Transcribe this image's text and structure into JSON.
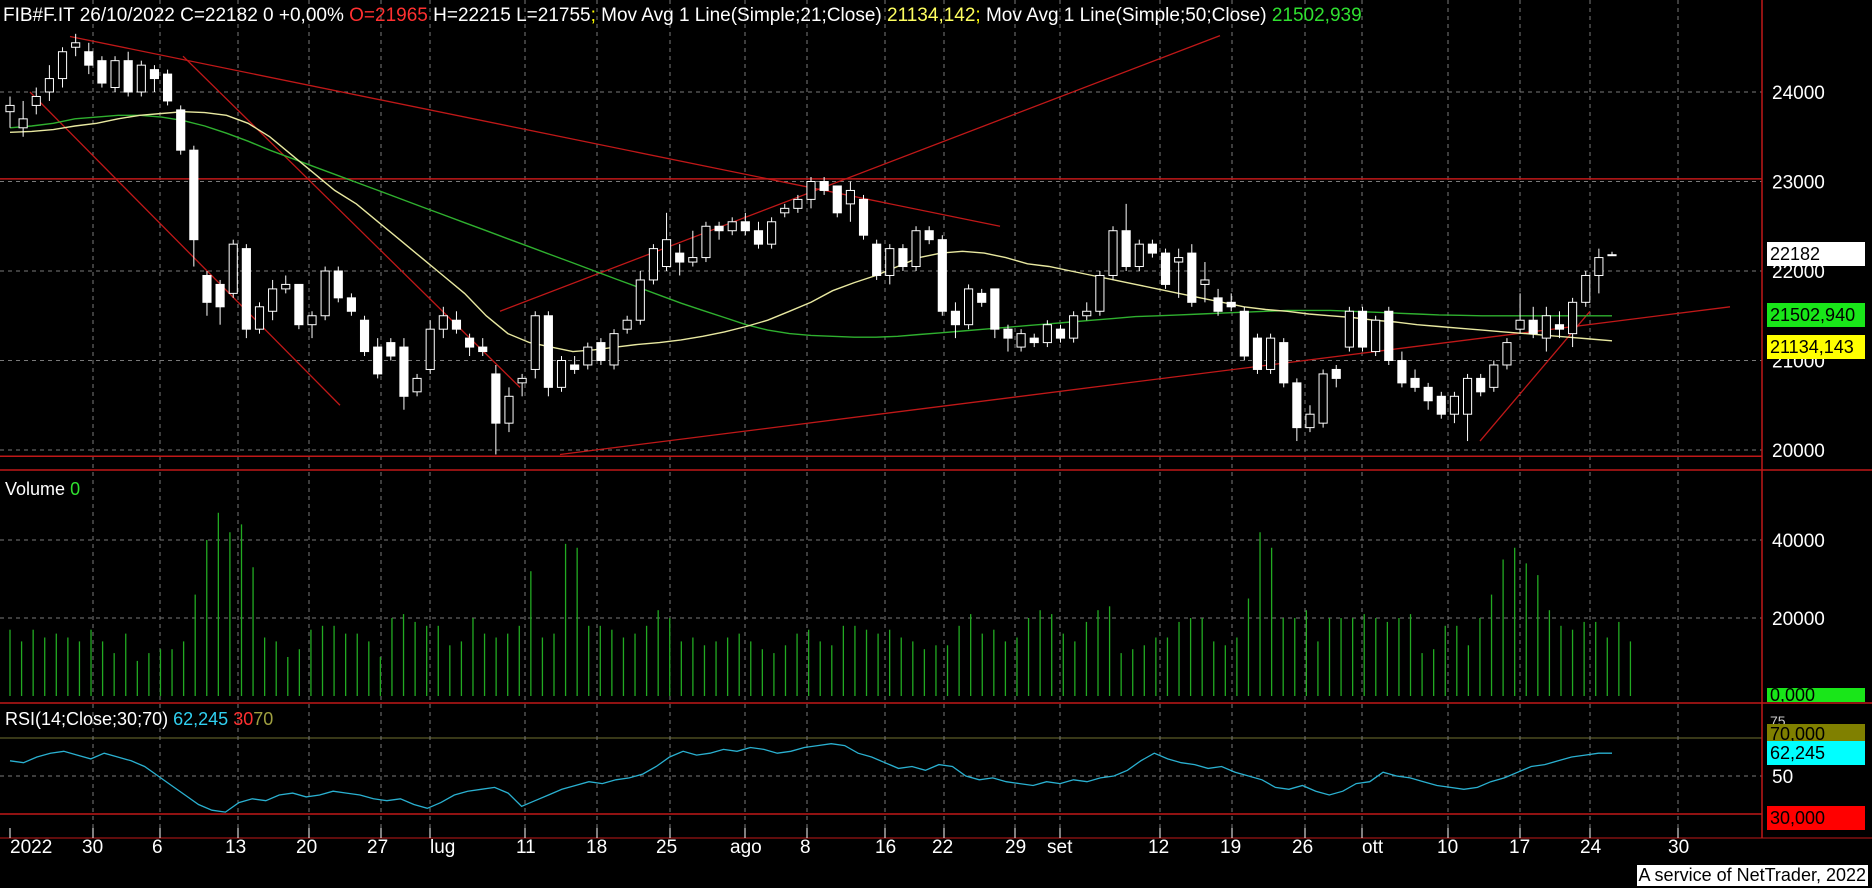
{
  "header": {
    "symbol": "FIB#F.IT",
    "date": "26/10/2022",
    "close": "C=22182",
    "change": "0 +0,00%",
    "open": "O=21965",
    "high": "H=22215",
    "low": "L=21755",
    "sep": ";",
    "ma21_label": "Mov Avg 1 Line(Simple;21;Close)",
    "ma21_value": "21134,142",
    "ma50_label": "Mov Avg 1 Line(Simple;50;Close)",
    "ma50_value": "21502,939"
  },
  "volume_label": {
    "name": "Volume",
    "value": "0"
  },
  "rsi_label": {
    "name": "RSI(14;Close;30;70)",
    "value": "62,245",
    "low": "30",
    "high": "70"
  },
  "badges": {
    "last": "22182",
    "ma50": "21502,940",
    "ma21": "21134,143",
    "vol": "0,000",
    "rsi70": "70,000",
    "rsi75": "75",
    "rsi": "62,245",
    "rsi30": "30,000"
  },
  "footer": "A service of NetTrader, 2022",
  "colors": {
    "background": "#000000",
    "grid": "#7a7a7a",
    "candle_up": "#000000",
    "candle_down": "#ffffff",
    "ma21": "#e8e8a0",
    "ma50": "#2fb02f",
    "volume": "#22aa22",
    "rsi": "#2ab0d0",
    "trendline": "#c01818",
    "last_badge": "#ffffff",
    "ma50_badge": "#19e619",
    "ma21_badge": "#ffff00",
    "rsi_badge": "#00ffff",
    "rsi30_badge": "#ff0000",
    "rsi70_badge": "#808000"
  },
  "chart_data": {
    "type": "candlestick",
    "x_tick_labels": [
      "2022",
      "30",
      "6",
      "13",
      "20",
      "27",
      "lug",
      "11",
      "18",
      "25",
      "ago",
      "8",
      "16",
      "22",
      "29",
      "set",
      "12",
      "19",
      "26",
      "ott",
      "10",
      "17",
      "24",
      "30"
    ],
    "price_axis": {
      "ticks": [
        20000,
        21000,
        22000,
        23000,
        24000
      ],
      "range": [
        19850,
        24900
      ]
    },
    "volume_axis": {
      "ticks": [
        20000,
        40000
      ],
      "range": [
        0,
        47000
      ]
    },
    "rsi_axis": {
      "ticks": [
        50
      ],
      "range": [
        20,
        80
      ]
    },
    "horizontal_levels": [
      23030,
      19930
    ],
    "candles": [
      {
        "o": 23780,
        "h": 23950,
        "l": 23600,
        "c": 23850
      },
      {
        "o": 23600,
        "h": 23900,
        "l": 23500,
        "c": 23700
      },
      {
        "o": 23850,
        "h": 24050,
        "l": 23750,
        "c": 23950
      },
      {
        "o": 24000,
        "h": 24300,
        "l": 23900,
        "c": 24150
      },
      {
        "o": 24150,
        "h": 24500,
        "l": 24050,
        "c": 24450
      },
      {
        "o": 24500,
        "h": 24650,
        "l": 24400,
        "c": 24550
      },
      {
        "o": 24450,
        "h": 24550,
        "l": 24200,
        "c": 24300
      },
      {
        "o": 24350,
        "h": 24400,
        "l": 24050,
        "c": 24100
      },
      {
        "o": 24050,
        "h": 24400,
        "l": 24000,
        "c": 24350
      },
      {
        "o": 24350,
        "h": 24450,
        "l": 23950,
        "c": 24000
      },
      {
        "o": 24000,
        "h": 24350,
        "l": 23950,
        "c": 24300
      },
      {
        "o": 24250,
        "h": 24300,
        "l": 24000,
        "c": 24150
      },
      {
        "o": 24200,
        "h": 24250,
        "l": 23850,
        "c": 23900
      },
      {
        "o": 23800,
        "h": 23850,
        "l": 23300,
        "c": 23350
      },
      {
        "o": 23350,
        "h": 23400,
        "l": 22050,
        "c": 22350
      },
      {
        "o": 21950,
        "h": 22000,
        "l": 21500,
        "c": 21650
      },
      {
        "o": 21850,
        "h": 21900,
        "l": 21400,
        "c": 21600
      },
      {
        "o": 21750,
        "h": 22350,
        "l": 21700,
        "c": 22300
      },
      {
        "o": 22250,
        "h": 22300,
        "l": 21250,
        "c": 21350
      },
      {
        "o": 21350,
        "h": 21650,
        "l": 21300,
        "c": 21600
      },
      {
        "o": 21550,
        "h": 21900,
        "l": 21450,
        "c": 21800
      },
      {
        "o": 21800,
        "h": 21950,
        "l": 21750,
        "c": 21850
      },
      {
        "o": 21850,
        "h": 21850,
        "l": 21350,
        "c": 21400
      },
      {
        "o": 21400,
        "h": 21550,
        "l": 21250,
        "c": 21500
      },
      {
        "o": 21500,
        "h": 22050,
        "l": 21450,
        "c": 22000
      },
      {
        "o": 22000,
        "h": 22050,
        "l": 21650,
        "c": 21700
      },
      {
        "o": 21700,
        "h": 21750,
        "l": 21500,
        "c": 21550
      },
      {
        "o": 21450,
        "h": 21500,
        "l": 21050,
        "c": 21100
      },
      {
        "o": 21150,
        "h": 21250,
        "l": 20800,
        "c": 20850
      },
      {
        "o": 21200,
        "h": 21250,
        "l": 21000,
        "c": 21050
      },
      {
        "o": 21150,
        "h": 21250,
        "l": 20450,
        "c": 20600
      },
      {
        "o": 20650,
        "h": 20850,
        "l": 20600,
        "c": 20800
      },
      {
        "o": 20900,
        "h": 21450,
        "l": 20850,
        "c": 21350
      },
      {
        "o": 21350,
        "h": 21600,
        "l": 21250,
        "c": 21500
      },
      {
        "o": 21450,
        "h": 21550,
        "l": 21300,
        "c": 21350
      },
      {
        "o": 21250,
        "h": 21300,
        "l": 21050,
        "c": 21150
      },
      {
        "o": 21150,
        "h": 21250,
        "l": 21050,
        "c": 21100
      },
      {
        "o": 20850,
        "h": 20950,
        "l": 19950,
        "c": 20300
      },
      {
        "o": 20300,
        "h": 20700,
        "l": 20200,
        "c": 20600
      },
      {
        "o": 20750,
        "h": 20850,
        "l": 20600,
        "c": 20800
      },
      {
        "o": 20900,
        "h": 21550,
        "l": 20800,
        "c": 21500
      },
      {
        "o": 21500,
        "h": 21550,
        "l": 20600,
        "c": 20700
      },
      {
        "o": 20700,
        "h": 21050,
        "l": 20650,
        "c": 21000
      },
      {
        "o": 20950,
        "h": 21050,
        "l": 20850,
        "c": 20900
      },
      {
        "o": 20950,
        "h": 21200,
        "l": 20900,
        "c": 21150
      },
      {
        "o": 21200,
        "h": 21250,
        "l": 20950,
        "c": 21000
      },
      {
        "o": 20950,
        "h": 21350,
        "l": 20900,
        "c": 21300
      },
      {
        "o": 21350,
        "h": 21500,
        "l": 21300,
        "c": 21450
      },
      {
        "o": 21450,
        "h": 22000,
        "l": 21400,
        "c": 21900
      },
      {
        "o": 21900,
        "h": 22300,
        "l": 21850,
        "c": 22250
      },
      {
        "o": 22050,
        "h": 22650,
        "l": 22000,
        "c": 22350
      },
      {
        "o": 22200,
        "h": 22300,
        "l": 21950,
        "c": 22100
      },
      {
        "o": 22100,
        "h": 22450,
        "l": 22050,
        "c": 22150
      },
      {
        "o": 22150,
        "h": 22550,
        "l": 22100,
        "c": 22500
      },
      {
        "o": 22500,
        "h": 22550,
        "l": 22350,
        "c": 22450
      },
      {
        "o": 22450,
        "h": 22600,
        "l": 22400,
        "c": 22550
      },
      {
        "o": 22550,
        "h": 22650,
        "l": 22400,
        "c": 22450
      },
      {
        "o": 22450,
        "h": 22550,
        "l": 22250,
        "c": 22300
      },
      {
        "o": 22300,
        "h": 22600,
        "l": 22250,
        "c": 22550
      },
      {
        "o": 22650,
        "h": 22750,
        "l": 22600,
        "c": 22700
      },
      {
        "o": 22700,
        "h": 22850,
        "l": 22650,
        "c": 22800
      },
      {
        "o": 22800,
        "h": 23050,
        "l": 22700,
        "c": 23000
      },
      {
        "o": 23000,
        "h": 23050,
        "l": 22850,
        "c": 22900
      },
      {
        "o": 22950,
        "h": 22950,
        "l": 22600,
        "c": 22650
      },
      {
        "o": 22750,
        "h": 23000,
        "l": 22550,
        "c": 22900
      },
      {
        "o": 22800,
        "h": 22850,
        "l": 22350,
        "c": 22400
      },
      {
        "o": 22300,
        "h": 22350,
        "l": 21900,
        "c": 21950
      },
      {
        "o": 21950,
        "h": 22300,
        "l": 21850,
        "c": 22250
      },
      {
        "o": 22250,
        "h": 22300,
        "l": 22000,
        "c": 22050
      },
      {
        "o": 22050,
        "h": 22500,
        "l": 22000,
        "c": 22450
      },
      {
        "o": 22450,
        "h": 22500,
        "l": 22300,
        "c": 22350
      },
      {
        "o": 22350,
        "h": 22400,
        "l": 21500,
        "c": 21550
      },
      {
        "o": 21550,
        "h": 21650,
        "l": 21250,
        "c": 21400
      },
      {
        "o": 21400,
        "h": 21850,
        "l": 21350,
        "c": 21800
      },
      {
        "o": 21750,
        "h": 21800,
        "l": 21600,
        "c": 21650
      },
      {
        "o": 21800,
        "h": 21800,
        "l": 21250,
        "c": 21350
      },
      {
        "o": 21350,
        "h": 21400,
        "l": 21100,
        "c": 21250
      },
      {
        "o": 21150,
        "h": 21350,
        "l": 21100,
        "c": 21300
      },
      {
        "o": 21250,
        "h": 21300,
        "l": 21150,
        "c": 21200
      },
      {
        "o": 21200,
        "h": 21450,
        "l": 21150,
        "c": 21400
      },
      {
        "o": 21350,
        "h": 21400,
        "l": 21200,
        "c": 21250
      },
      {
        "o": 21250,
        "h": 21550,
        "l": 21200,
        "c": 21500
      },
      {
        "o": 21500,
        "h": 21650,
        "l": 21450,
        "c": 21550
      },
      {
        "o": 21550,
        "h": 22000,
        "l": 21500,
        "c": 21950
      },
      {
        "o": 21950,
        "h": 22500,
        "l": 21900,
        "c": 22450
      },
      {
        "o": 22450,
        "h": 22750,
        "l": 22000,
        "c": 22050
      },
      {
        "o": 22050,
        "h": 22350,
        "l": 22000,
        "c": 22300
      },
      {
        "o": 22300,
        "h": 22350,
        "l": 22150,
        "c": 22200
      },
      {
        "o": 22200,
        "h": 22250,
        "l": 21800,
        "c": 21850
      },
      {
        "o": 22100,
        "h": 22250,
        "l": 21700,
        "c": 22150
      },
      {
        "o": 22200,
        "h": 22300,
        "l": 21600,
        "c": 21650
      },
      {
        "o": 21850,
        "h": 22100,
        "l": 21650,
        "c": 21900
      },
      {
        "o": 21700,
        "h": 21800,
        "l": 21500,
        "c": 21550
      },
      {
        "o": 21650,
        "h": 21750,
        "l": 21550,
        "c": 21600
      },
      {
        "o": 21550,
        "h": 21600,
        "l": 21000,
        "c": 21050
      },
      {
        "o": 21250,
        "h": 21300,
        "l": 20850,
        "c": 20900
      },
      {
        "o": 20900,
        "h": 21300,
        "l": 20850,
        "c": 21250
      },
      {
        "o": 21200,
        "h": 21250,
        "l": 20700,
        "c": 20750
      },
      {
        "o": 20750,
        "h": 20800,
        "l": 20100,
        "c": 20250
      },
      {
        "o": 20250,
        "h": 20500,
        "l": 20200,
        "c": 20400
      },
      {
        "o": 20300,
        "h": 20900,
        "l": 20250,
        "c": 20850
      },
      {
        "o": 20900,
        "h": 20950,
        "l": 20700,
        "c": 20800
      },
      {
        "o": 21150,
        "h": 21600,
        "l": 21100,
        "c": 21550
      },
      {
        "o": 21550,
        "h": 21600,
        "l": 21100,
        "c": 21150
      },
      {
        "o": 21100,
        "h": 21500,
        "l": 21050,
        "c": 21450
      },
      {
        "o": 21550,
        "h": 21600,
        "l": 20950,
        "c": 21000
      },
      {
        "o": 21000,
        "h": 21100,
        "l": 20700,
        "c": 20750
      },
      {
        "o": 20800,
        "h": 20900,
        "l": 20650,
        "c": 20700
      },
      {
        "o": 20700,
        "h": 20750,
        "l": 20450,
        "c": 20550
      },
      {
        "o": 20600,
        "h": 20650,
        "l": 20350,
        "c": 20400
      },
      {
        "o": 20400,
        "h": 20650,
        "l": 20300,
        "c": 20600
      },
      {
        "o": 20400,
        "h": 20850,
        "l": 20100,
        "c": 20800
      },
      {
        "o": 20800,
        "h": 20850,
        "l": 20600,
        "c": 20650
      },
      {
        "o": 20700,
        "h": 21000,
        "l": 20650,
        "c": 20950
      },
      {
        "o": 20950,
        "h": 21250,
        "l": 20900,
        "c": 21200
      },
      {
        "o": 21350,
        "h": 21750,
        "l": 21300,
        "c": 21450
      },
      {
        "o": 21450,
        "h": 21600,
        "l": 21250,
        "c": 21300
      },
      {
        "o": 21250,
        "h": 21600,
        "l": 21100,
        "c": 21500
      },
      {
        "o": 21400,
        "h": 21550,
        "l": 21250,
        "c": 21350
      },
      {
        "o": 21300,
        "h": 21700,
        "l": 21150,
        "c": 21650
      },
      {
        "o": 21650,
        "h": 22000,
        "l": 21600,
        "c": 21950
      },
      {
        "o": 21950,
        "h": 22250,
        "l": 21750,
        "c": 22150
      },
      {
        "o": 22182,
        "h": 22215,
        "l": 22182,
        "c": 22182
      }
    ],
    "ma21": [
      23550,
      23560,
      23580,
      23620,
      23650,
      23700,
      23740,
      23760,
      23780,
      23770,
      23740,
      23650,
      23500,
      23300,
      23100,
      22900,
      22750,
      22550,
      22350,
      22150,
      21950,
      21750,
      21500,
      21300,
      21200,
      21150,
      21100,
      21120,
      21150,
      21180,
      21200,
      21230,
      21270,
      21320,
      21380,
      21450,
      21550,
      21650,
      21780,
      21870,
      21950,
      22050,
      22150,
      22200,
      22220,
      22200,
      22150,
      22080,
      22050,
      22000,
      21950,
      21900,
      21850,
      21800,
      21750,
      21700,
      21650,
      21600,
      21570,
      21550,
      21520,
      21500,
      21480,
      21450,
      21430,
      21400,
      21380,
      21360,
      21340,
      21320,
      21300,
      21280,
      21260,
      21240,
      21220
    ],
    "ma50": [
      23600,
      23620,
      23650,
      23700,
      23720,
      23740,
      23740,
      23720,
      23680,
      23620,
      23540,
      23450,
      23350,
      23260,
      23170,
      23080,
      22990,
      22900,
      22810,
      22720,
      22630,
      22540,
      22450,
      22360,
      22270,
      22180,
      22090,
      22000,
      21910,
      21820,
      21730,
      21640,
      21560,
      21480,
      21400,
      21340,
      21300,
      21280,
      21270,
      21260,
      21260,
      21270,
      21290,
      21310,
      21330,
      21350,
      21370,
      21390,
      21410,
      21430,
      21450,
      21470,
      21490,
      21500,
      21510,
      21520,
      21530,
      21540,
      21550,
      21560,
      21560,
      21560,
      21550,
      21540,
      21530,
      21520,
      21510,
      21505,
      21500,
      21500,
      21500,
      21500,
      21500,
      21500,
      21500
    ],
    "volume": [
      17000,
      14000,
      17000,
      15000,
      16000,
      15000,
      14000,
      17000,
      14000,
      11000,
      16000,
      9000,
      11000,
      12000,
      12000,
      14000,
      26000,
      40000,
      47000,
      42000,
      44000,
      33000,
      15000,
      14000,
      10000,
      12000,
      17000,
      18000,
      18000,
      16000,
      16000,
      14000,
      10000,
      20000,
      21000,
      19000,
      18000,
      18000,
      13000,
      14000,
      20000,
      16000,
      15000,
      16000,
      18000,
      32000,
      15000,
      16000,
      39000,
      38000,
      18000,
      18000,
      17000,
      15000,
      16000,
      18000,
      22000,
      20000,
      14000,
      15000,
      13000,
      14000,
      15000,
      16000,
      14000,
      12000,
      11000,
      13000,
      16000,
      17000,
      14000,
      13000,
      18000,
      18000,
      17000,
      16000,
      17000,
      15000,
      14000,
      12000,
      13000,
      13000,
      18000,
      21000,
      16000,
      17000,
      14000,
      15000,
      20000,
      22000,
      21000,
      16000,
      14000,
      19000,
      22000,
      23000,
      11000,
      12000,
      13000,
      15000,
      15000,
      19000,
      20000,
      20000,
      14000,
      13000,
      15000,
      25000,
      42000,
      38000,
      20000,
      20000,
      22000,
      14000,
      20000,
      20000,
      20000,
      21000,
      20000,
      19000,
      20000,
      21000,
      11000,
      12000,
      18000,
      18000,
      13000,
      20000,
      26000,
      35000,
      38000,
      34000,
      31000,
      22000,
      18000,
      17000,
      19000,
      19000,
      15000,
      19000,
      14000,
      0
    ],
    "rsi": [
      58,
      57,
      60,
      62,
      63,
      61,
      59,
      62,
      60,
      58,
      55,
      50,
      45,
      40,
      35,
      32,
      31,
      36,
      38,
      37,
      40,
      41,
      39,
      40,
      42,
      41,
      40,
      38,
      37,
      38,
      35,
      33,
      36,
      40,
      42,
      43,
      44,
      41,
      34,
      37,
      40,
      43,
      45,
      47,
      46,
      48,
      49,
      51,
      55,
      60,
      63,
      61,
      62,
      64,
      63,
      65,
      64,
      62,
      63,
      65,
      66,
      67,
      66,
      62,
      60,
      57,
      54,
      55,
      53,
      56,
      55,
      50,
      48,
      49,
      47,
      46,
      45,
      47,
      46,
      48,
      47,
      49,
      50,
      53,
      58,
      62,
      59,
      57,
      56,
      54,
      55,
      52,
      50,
      48,
      44,
      43,
      45,
      42,
      40,
      42,
      46,
      47,
      52,
      50,
      49,
      47,
      45,
      44,
      43,
      44,
      47,
      49,
      52,
      55,
      56,
      58,
      60,
      61,
      62,
      62
    ]
  }
}
